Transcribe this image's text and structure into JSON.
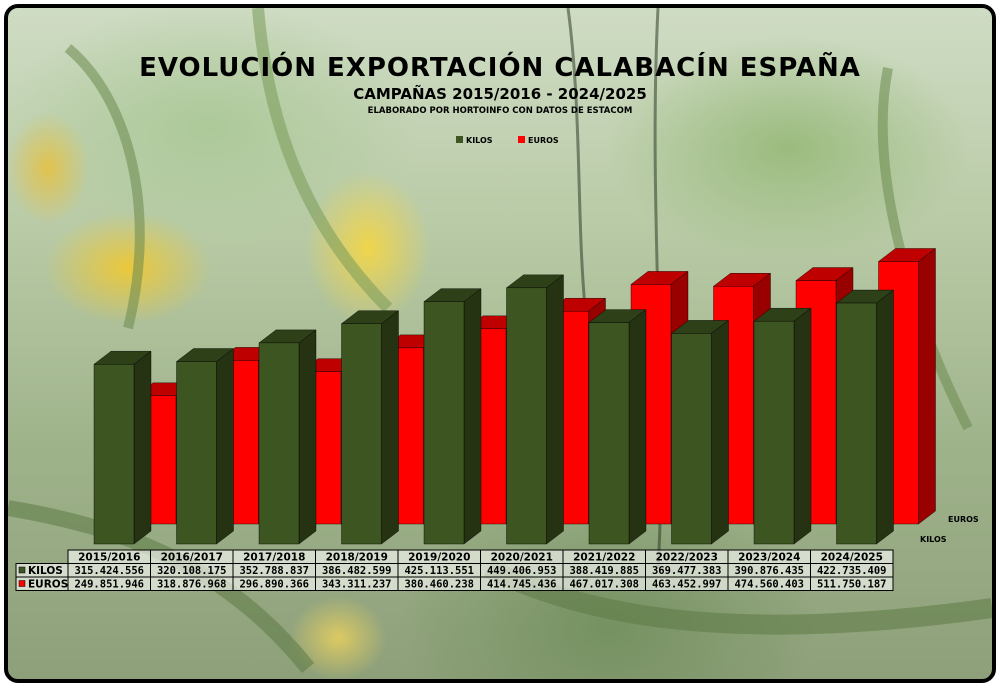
{
  "chart_data": {
    "type": "bar",
    "title": "EVOLUCIÓN EXPORTACIÓN CALABACÍN ESPAÑA",
    "subtitle": "CAMPAÑAS 2015/2016 - 2024/2025",
    "source": "ELABORADO POR HORTOINFO CON DATOS DE ESTACOM",
    "categories": [
      "2015/2016",
      "2016/2017",
      "2017/2018",
      "2018/2019",
      "2019/2020",
      "2020/2021",
      "2021/2022",
      "2022/2023",
      "2023/2024",
      "2024/2025"
    ],
    "series": [
      {
        "name": "KILOS",
        "color": "#3d5520",
        "values": [
          315424556,
          320108175,
          352788837,
          386482599,
          425113551,
          449406953,
          388419885,
          369477383,
          390876435,
          422735409
        ],
        "labels": [
          "315.424.556",
          "320.108.175",
          "352.788.837",
          "386.482.599",
          "425.113.551",
          "449.406.953",
          "388.419.885",
          "369.477.383",
          "390.876.435",
          "422.735.409"
        ]
      },
      {
        "name": "EUROS",
        "color": "#ff0000",
        "values": [
          249851946,
          318876968,
          296890366,
          343311237,
          380460238,
          414745436,
          467017308,
          463452997,
          474560403,
          511750187
        ],
        "labels": [
          "249.851.946",
          "318.876.968",
          "296.890.366",
          "343.311.237",
          "380.460.238",
          "414.745.436",
          "467.017.308",
          "463.452.997",
          "474.560.403",
          "511.750.187"
        ]
      }
    ],
    "legend_position": "top-center",
    "grid": false,
    "data_table": true
  }
}
